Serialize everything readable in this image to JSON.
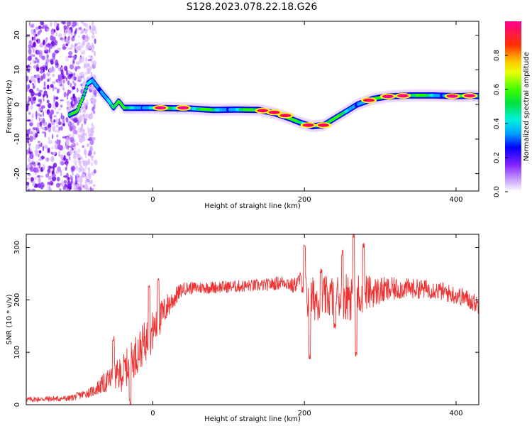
{
  "figure_title": "S128.2023.078.22.18.G26",
  "colors": {
    "background": "#ffffff",
    "snr_line": "#ee3333",
    "axis": "#000000"
  },
  "chart_data": [
    {
      "type": "heatmap",
      "id": "spectrogram",
      "xlabel": "Height of straight line (km)",
      "ylabel": "Frequency (Hz)",
      "xlim": [
        -167,
        430
      ],
      "ylim": [
        -25,
        24
      ],
      "x_ticks": [
        0,
        200,
        400
      ],
      "y_ticks": [
        -20,
        -10,
        0,
        10,
        20
      ],
      "colorbar": {
        "label": "Normalized spectral amplitude",
        "ticks": [
          0.0,
          0.2,
          0.4,
          0.6,
          0.8
        ],
        "range": [
          0,
          1
        ],
        "colormap": [
          "#ffffff",
          "#d9b8ff",
          "#a050ff",
          "#6a00e6",
          "#0000ff",
          "#00aaff",
          "#00f0e0",
          "#00e060",
          "#20ff00",
          "#b0ff00",
          "#ffff00",
          "#ffb000",
          "#ff4000",
          "#ff0060",
          "#ff0088"
        ]
      },
      "ridge": [
        {
          "x": -110,
          "y": -3
        },
        {
          "x": -100,
          "y": -2
        },
        {
          "x": -92,
          "y": 2
        },
        {
          "x": -86,
          "y": 6
        },
        {
          "x": -80,
          "y": 7
        },
        {
          "x": -73,
          "y": 5
        },
        {
          "x": -66,
          "y": 3
        },
        {
          "x": -58,
          "y": 1
        },
        {
          "x": -52,
          "y": -1
        },
        {
          "x": -45,
          "y": 1
        },
        {
          "x": -38,
          "y": -1
        },
        {
          "x": -30,
          "y": -1
        },
        {
          "x": 0,
          "y": -1
        },
        {
          "x": 50,
          "y": -1.2
        },
        {
          "x": 80,
          "y": -1.6
        },
        {
          "x": 110,
          "y": -1.5
        },
        {
          "x": 140,
          "y": -1.6
        },
        {
          "x": 160,
          "y": -2.5
        },
        {
          "x": 180,
          "y": -4
        },
        {
          "x": 195,
          "y": -5.3
        },
        {
          "x": 210,
          "y": -6.3
        },
        {
          "x": 225,
          "y": -6
        },
        {
          "x": 240,
          "y": -4
        },
        {
          "x": 255,
          "y": -2
        },
        {
          "x": 270,
          "y": 0
        },
        {
          "x": 290,
          "y": 1.6
        },
        {
          "x": 310,
          "y": 2.3
        },
        {
          "x": 340,
          "y": 2.6
        },
        {
          "x": 370,
          "y": 2.6
        },
        {
          "x": 400,
          "y": 2.4
        },
        {
          "x": 420,
          "y": 2.5
        },
        {
          "x": 430,
          "y": 2.4
        }
      ],
      "peak_blobs": [
        {
          "x": 10,
          "y": -1,
          "amp": 1.0
        },
        {
          "x": 40,
          "y": -1,
          "amp": 1.0
        },
        {
          "x": 145,
          "y": -1.8,
          "amp": 0.95
        },
        {
          "x": 160,
          "y": -2.3,
          "amp": 0.95
        },
        {
          "x": 175,
          "y": -3.2,
          "amp": 0.95
        },
        {
          "x": 205,
          "y": -6,
          "amp": 0.9
        },
        {
          "x": 225,
          "y": -6,
          "amp": 0.9
        },
        {
          "x": 285,
          "y": 1.2,
          "amp": 0.95
        },
        {
          "x": 310,
          "y": 2.3,
          "amp": 1.0
        },
        {
          "x": 330,
          "y": 2.5,
          "amp": 1.0
        },
        {
          "x": 395,
          "y": 2.4,
          "amp": 1.0
        },
        {
          "x": 418,
          "y": 2.5,
          "amp": 1.0
        }
      ],
      "noise_region": {
        "x_from": -167,
        "x_to": -100
      }
    },
    {
      "type": "line",
      "id": "snr",
      "xlabel": "Height of straight line (km)",
      "ylabel": "SNR (10 * v/v)",
      "xlim": [
        -167,
        430
      ],
      "ylim": [
        0,
        325
      ],
      "x_ticks": [
        0,
        200,
        400
      ],
      "y_ticks": [
        0,
        100,
        200,
        300
      ],
      "envelope": [
        {
          "x": -167,
          "y": 10,
          "jit": 5
        },
        {
          "x": -110,
          "y": 12,
          "jit": 6
        },
        {
          "x": -80,
          "y": 25,
          "jit": 10
        },
        {
          "x": -60,
          "y": 45,
          "jit": 22
        },
        {
          "x": -40,
          "y": 60,
          "jit": 35
        },
        {
          "x": -20,
          "y": 100,
          "jit": 40
        },
        {
          "x": 0,
          "y": 140,
          "jit": 40
        },
        {
          "x": 20,
          "y": 190,
          "jit": 25
        },
        {
          "x": 40,
          "y": 222,
          "jit": 12
        },
        {
          "x": 100,
          "y": 225,
          "jit": 12
        },
        {
          "x": 150,
          "y": 228,
          "jit": 12
        },
        {
          "x": 175,
          "y": 235,
          "jit": 14
        },
        {
          "x": 185,
          "y": 225,
          "jit": 15
        },
        {
          "x": 195,
          "y": 240,
          "jit": 15
        },
        {
          "x": 205,
          "y": 200,
          "jit": 45
        },
        {
          "x": 230,
          "y": 205,
          "jit": 40
        },
        {
          "x": 260,
          "y": 210,
          "jit": 50
        },
        {
          "x": 290,
          "y": 215,
          "jit": 30
        },
        {
          "x": 330,
          "y": 222,
          "jit": 20
        },
        {
          "x": 370,
          "y": 220,
          "jit": 18
        },
        {
          "x": 410,
          "y": 205,
          "jit": 18
        },
        {
          "x": 430,
          "y": 190,
          "jit": 18
        }
      ],
      "spikes": [
        {
          "x": 200,
          "y": 300
        },
        {
          "x": 207,
          "y": 90
        },
        {
          "x": 265,
          "y": 325
        },
        {
          "x": 268,
          "y": 95
        },
        {
          "x": 278,
          "y": 305
        },
        {
          "x": 240,
          "y": 150
        },
        {
          "x": 250,
          "y": 290
        },
        {
          "x": 222,
          "y": 255
        },
        {
          "x": 7,
          "y": 240
        },
        {
          "x": -5,
          "y": 230
        },
        {
          "x": -52,
          "y": 125
        },
        {
          "x": -30,
          "y": 5
        }
      ]
    }
  ]
}
